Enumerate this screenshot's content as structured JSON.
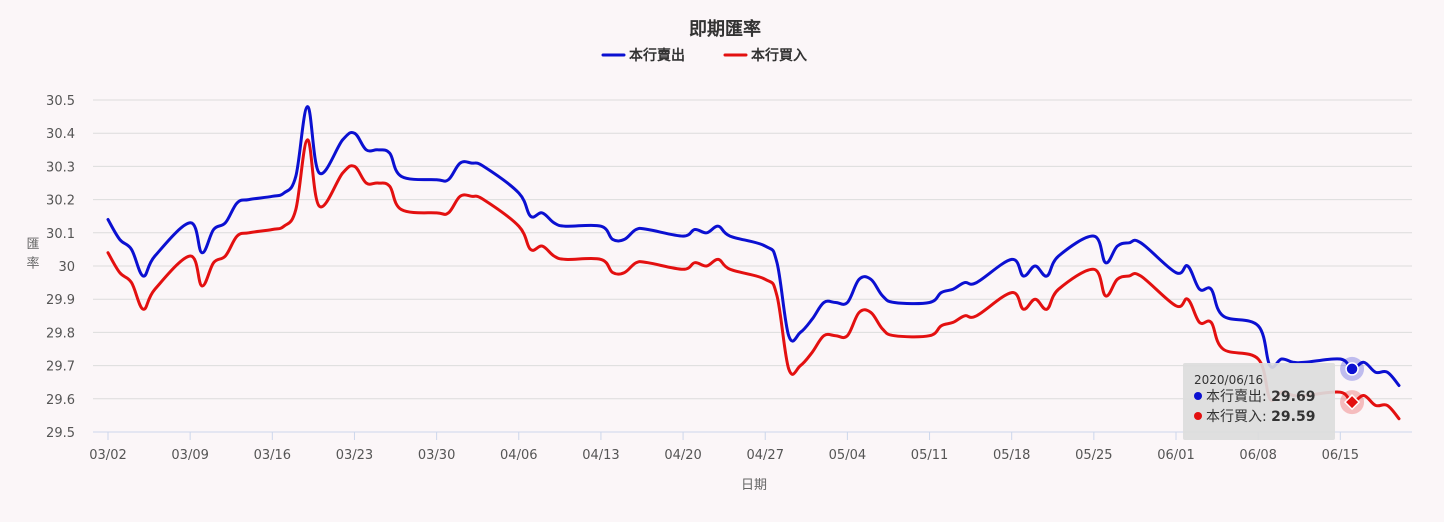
{
  "chart_data": {
    "type": "line",
    "title": "即期匯率",
    "xlabel": "日期",
    "ylabel": "匯率",
    "ylim": [
      29.5,
      30.5
    ],
    "yticks": [
      "30.5",
      "30.4",
      "30.3",
      "30.2",
      "30.1",
      "30",
      "29.9",
      "29.8",
      "29.7",
      "29.6",
      "29.5"
    ],
    "xticks": [
      "03/02",
      "03/09",
      "03/16",
      "03/23",
      "03/30",
      "04/06",
      "04/13",
      "04/20",
      "04/27",
      "05/04",
      "05/11",
      "05/18",
      "05/25",
      "06/01",
      "06/08",
      "06/15"
    ],
    "legend_position": "top-center",
    "grid": true,
    "series": [
      {
        "name": "本行賣出",
        "color": "#0b10d1",
        "values": [
          [
            0,
            30.14
          ],
          [
            1,
            30.08
          ],
          [
            2,
            30.05
          ],
          [
            3,
            29.97
          ],
          [
            4,
            30.03
          ],
          [
            7,
            30.13
          ],
          [
            8,
            30.04
          ],
          [
            9,
            30.11
          ],
          [
            10,
            30.13
          ],
          [
            11,
            30.19
          ],
          [
            12,
            30.2
          ],
          [
            14,
            30.21
          ],
          [
            15,
            30.22
          ],
          [
            16,
            30.27
          ],
          [
            17,
            30.48
          ],
          [
            18,
            30.28
          ],
          [
            20,
            30.38
          ],
          [
            21,
            30.4
          ],
          [
            22,
            30.35
          ],
          [
            23,
            30.35
          ],
          [
            24,
            30.34
          ],
          [
            25,
            30.27
          ],
          [
            28,
            30.26
          ],
          [
            29,
            30.26
          ],
          [
            30,
            30.31
          ],
          [
            31,
            30.31
          ],
          [
            32,
            30.3
          ],
          [
            35,
            30.22
          ],
          [
            36,
            30.15
          ],
          [
            37,
            30.16
          ],
          [
            38,
            30.13
          ],
          [
            39,
            30.12
          ],
          [
            42,
            30.12
          ],
          [
            43,
            30.08
          ],
          [
            44,
            30.08
          ],
          [
            45,
            30.11
          ],
          [
            46,
            30.11
          ],
          [
            49,
            30.09
          ],
          [
            50,
            30.11
          ],
          [
            51,
            30.1
          ],
          [
            52,
            30.12
          ],
          [
            53,
            30.09
          ],
          [
            56,
            30.06
          ],
          [
            57,
            30.01
          ],
          [
            58,
            29.79
          ],
          [
            59,
            29.8
          ],
          [
            60,
            29.84
          ],
          [
            61,
            29.89
          ],
          [
            62,
            29.89
          ],
          [
            63,
            29.89
          ],
          [
            64,
            29.96
          ],
          [
            65,
            29.96
          ],
          [
            66,
            29.91
          ],
          [
            67,
            29.89
          ],
          [
            70,
            29.89
          ],
          [
            71,
            29.92
          ],
          [
            72,
            29.93
          ],
          [
            73,
            29.95
          ],
          [
            74,
            29.95
          ],
          [
            77,
            30.02
          ],
          [
            78,
            29.97
          ],
          [
            79,
            30.0
          ],
          [
            80,
            29.97
          ],
          [
            81,
            30.03
          ],
          [
            84,
            30.09
          ],
          [
            85,
            30.01
          ],
          [
            86,
            30.06
          ],
          [
            87,
            30.07
          ],
          [
            88,
            30.07
          ],
          [
            91,
            29.98
          ],
          [
            92,
            30.0
          ],
          [
            93,
            29.93
          ],
          [
            94,
            29.93
          ],
          [
            95,
            29.85
          ],
          [
            98,
            29.82
          ],
          [
            99,
            29.7
          ],
          [
            100,
            29.72
          ],
          [
            101,
            29.71
          ],
          [
            102,
            29.71
          ],
          [
            105,
            29.72
          ],
          [
            106,
            29.69
          ],
          [
            107,
            29.71
          ],
          [
            108,
            29.68
          ],
          [
            109,
            29.68
          ],
          [
            110,
            29.64
          ]
        ]
      },
      {
        "name": "本行買入",
        "color": "#e31010",
        "values": [
          [
            0,
            30.04
          ],
          [
            1,
            29.98
          ],
          [
            2,
            29.95
          ],
          [
            3,
            29.87
          ],
          [
            4,
            29.93
          ],
          [
            7,
            30.03
          ],
          [
            8,
            29.94
          ],
          [
            9,
            30.01
          ],
          [
            10,
            30.03
          ],
          [
            11,
            30.09
          ],
          [
            12,
            30.1
          ],
          [
            14,
            30.11
          ],
          [
            15,
            30.12
          ],
          [
            16,
            30.17
          ],
          [
            17,
            30.38
          ],
          [
            18,
            30.18
          ],
          [
            20,
            30.28
          ],
          [
            21,
            30.3
          ],
          [
            22,
            30.25
          ],
          [
            23,
            30.25
          ],
          [
            24,
            30.24
          ],
          [
            25,
            30.17
          ],
          [
            28,
            30.16
          ],
          [
            29,
            30.16
          ],
          [
            30,
            30.21
          ],
          [
            31,
            30.21
          ],
          [
            32,
            30.2
          ],
          [
            35,
            30.12
          ],
          [
            36,
            30.05
          ],
          [
            37,
            30.06
          ],
          [
            38,
            30.03
          ],
          [
            39,
            30.02
          ],
          [
            42,
            30.02
          ],
          [
            43,
            29.98
          ],
          [
            44,
            29.98
          ],
          [
            45,
            30.01
          ],
          [
            46,
            30.01
          ],
          [
            49,
            29.99
          ],
          [
            50,
            30.01
          ],
          [
            51,
            30.0
          ],
          [
            52,
            30.02
          ],
          [
            53,
            29.99
          ],
          [
            56,
            29.96
          ],
          [
            57,
            29.91
          ],
          [
            58,
            29.69
          ],
          [
            59,
            29.7
          ],
          [
            60,
            29.74
          ],
          [
            61,
            29.79
          ],
          [
            62,
            29.79
          ],
          [
            63,
            29.79
          ],
          [
            64,
            29.86
          ],
          [
            65,
            29.86
          ],
          [
            66,
            29.81
          ],
          [
            67,
            29.79
          ],
          [
            70,
            29.79
          ],
          [
            71,
            29.82
          ],
          [
            72,
            29.83
          ],
          [
            73,
            29.85
          ],
          [
            74,
            29.85
          ],
          [
            77,
            29.92
          ],
          [
            78,
            29.87
          ],
          [
            79,
            29.9
          ],
          [
            80,
            29.87
          ],
          [
            81,
            29.93
          ],
          [
            84,
            29.99
          ],
          [
            85,
            29.91
          ],
          [
            86,
            29.96
          ],
          [
            87,
            29.97
          ],
          [
            88,
            29.97
          ],
          [
            91,
            29.88
          ],
          [
            92,
            29.9
          ],
          [
            93,
            29.83
          ],
          [
            94,
            29.83
          ],
          [
            95,
            29.75
          ],
          [
            98,
            29.72
          ],
          [
            99,
            29.6
          ],
          [
            100,
            29.62
          ],
          [
            101,
            29.61
          ],
          [
            102,
            29.61
          ],
          [
            105,
            29.62
          ],
          [
            106,
            29.59
          ],
          [
            107,
            29.61
          ],
          [
            108,
            29.58
          ],
          [
            109,
            29.58
          ],
          [
            110,
            29.54
          ]
        ]
      }
    ],
    "tooltip": {
      "date": "2020/06/16",
      "index": 106,
      "rows": [
        {
          "name": "本行賣出",
          "sep": ": ",
          "value": "29.69"
        },
        {
          "name": "本行買入",
          "sep": ": ",
          "value": "29.59"
        }
      ]
    }
  }
}
